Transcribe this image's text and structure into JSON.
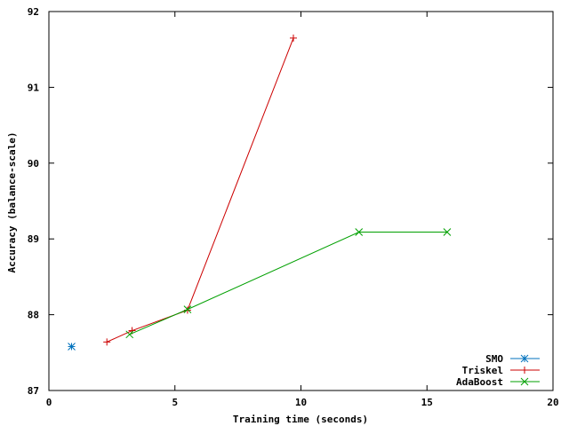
{
  "chart_data": {
    "type": "line",
    "title": "",
    "xlabel": "Training time (seconds)",
    "ylabel": "Accuracy (balance-scale)",
    "xlim": [
      0,
      20
    ],
    "ylim": [
      87,
      92
    ],
    "xticks": [
      0,
      5,
      10,
      15,
      20
    ],
    "yticks": [
      87,
      88,
      89,
      90,
      91,
      92
    ],
    "grid": false,
    "legend_position": "bottom-right",
    "series": [
      {
        "name": "SMO",
        "color": "#0072bd",
        "marker": "star",
        "points": [
          [
            0.9,
            87.58
          ]
        ]
      },
      {
        "name": "Triskel",
        "color": "#cc0000",
        "marker": "plus",
        "points": [
          [
            2.3,
            87.64
          ],
          [
            3.3,
            87.79
          ],
          [
            5.5,
            88.06
          ],
          [
            9.7,
            91.65
          ]
        ]
      },
      {
        "name": "AdaBoost",
        "color": "#00a000",
        "marker": "cross",
        "points": [
          [
            3.2,
            87.74
          ],
          [
            5.5,
            88.07
          ],
          [
            12.3,
            89.09
          ],
          [
            15.8,
            89.09
          ]
        ]
      }
    ]
  }
}
